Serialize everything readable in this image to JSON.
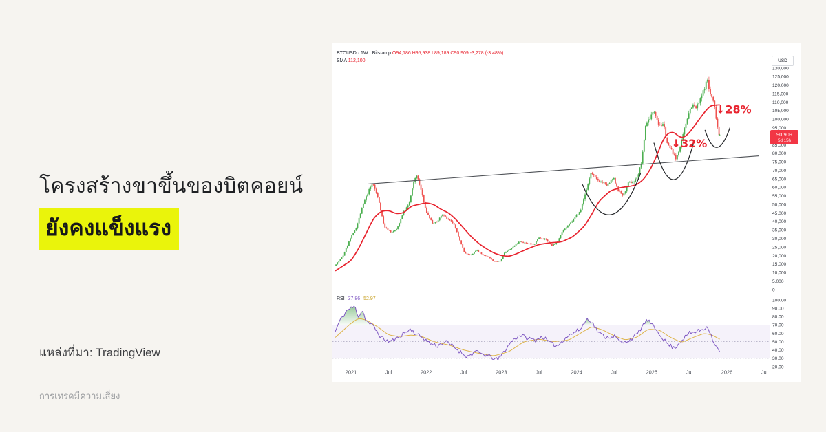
{
  "headline": {
    "line1": "โครงสร้างขาขึ้นของบิตคอยน์",
    "line2": "ยังคงแข็งแรง",
    "highlight_color": "#eaf40b"
  },
  "source": {
    "label": "แหล่งที่มา: TradingView"
  },
  "disclaimer": {
    "label": "การเทรดมีความเสี่ยง"
  },
  "chart": {
    "header": {
      "title": "BTCUSD · 1W · Bitstamp",
      "ohlc_text": "O94,186 H95,938 L89,189 C90,909 -3,278 (-3.48%)",
      "sma_label": "SMA",
      "sma_value": "112,100"
    },
    "rsi_header": {
      "label": "RSI",
      "value1": "37.86",
      "value2": "52.97"
    },
    "axis_currency": "USD",
    "price_label": {
      "value": "90,909",
      "countdown": "5d 15h",
      "bg": "#f23645"
    }
  },
  "chart_data": {
    "type": "candlestick",
    "symbol": "BTCUSD",
    "timeframe": "1W",
    "exchange": "Bitstamp",
    "last_close": 90909,
    "colors": {
      "up": "#4caf50",
      "down": "#ef5350",
      "sma": "#e8232e",
      "accent": "#e8232e",
      "rsi": "#7e57c2",
      "rsi_ma": "#ddb347",
      "band": "#7e57c2",
      "overbought_fill": "#43a047",
      "trendline": "#4f5257",
      "arc": "#26282b"
    },
    "price_axis": {
      "min": 0,
      "max": 130000,
      "step": 5000,
      "unit": "USD"
    },
    "rsi_axis": {
      "min": 20,
      "max": 100,
      "step": 10,
      "band": [
        30,
        70
      ],
      "mid": 50
    },
    "time_ticks": [
      {
        "label": "2021",
        "t": 2021
      },
      {
        "label": "Jul",
        "t": 2021.5
      },
      {
        "label": "2022",
        "t": 2022
      },
      {
        "label": "Jul",
        "t": 2022.5
      },
      {
        "label": "2023",
        "t": 2023
      },
      {
        "label": "Jul",
        "t": 2023.5
      },
      {
        "label": "2024",
        "t": 2024
      },
      {
        "label": "Jul",
        "t": 2024.5
      },
      {
        "label": "2025",
        "t": 2025
      },
      {
        "label": "Jul",
        "t": 2025.5
      },
      {
        "label": "2026",
        "t": 2026
      },
      {
        "label": "Jul",
        "t": 2026.5
      }
    ],
    "price_path": [
      [
        2020.79,
        14000
      ],
      [
        2020.9,
        19500
      ],
      [
        2021.0,
        30000
      ],
      [
        2021.08,
        36500
      ],
      [
        2021.17,
        50000
      ],
      [
        2021.25,
        58500
      ],
      [
        2021.3,
        62500
      ],
      [
        2021.38,
        52000
      ],
      [
        2021.45,
        37000
      ],
      [
        2021.55,
        33500
      ],
      [
        2021.62,
        35500
      ],
      [
        2021.7,
        45000
      ],
      [
        2021.78,
        50000
      ],
      [
        2021.85,
        64000
      ],
      [
        2021.88,
        67500
      ],
      [
        2021.95,
        57000
      ],
      [
        2022.0,
        47000
      ],
      [
        2022.05,
        42500
      ],
      [
        2022.1,
        38500
      ],
      [
        2022.17,
        40500
      ],
      [
        2022.22,
        44500
      ],
      [
        2022.3,
        41000
      ],
      [
        2022.37,
        39000
      ],
      [
        2022.45,
        30000
      ],
      [
        2022.52,
        21500
      ],
      [
        2022.6,
        20000
      ],
      [
        2022.68,
        23500
      ],
      [
        2022.75,
        20500
      ],
      [
        2022.85,
        19000
      ],
      [
        2022.9,
        16500
      ],
      [
        2023.0,
        16800
      ],
      [
        2023.05,
        21500
      ],
      [
        2023.15,
        24500
      ],
      [
        2023.25,
        28500
      ],
      [
        2023.35,
        27000
      ],
      [
        2023.45,
        26500
      ],
      [
        2023.5,
        30500
      ],
      [
        2023.6,
        29500
      ],
      [
        2023.68,
        26000
      ],
      [
        2023.75,
        27500
      ],
      [
        2023.82,
        34500
      ],
      [
        2023.9,
        37500
      ],
      [
        2024.0,
        43000
      ],
      [
        2024.07,
        47500
      ],
      [
        2024.15,
        60000
      ],
      [
        2024.2,
        68500
      ],
      [
        2024.28,
        64500
      ],
      [
        2024.35,
        63000
      ],
      [
        2024.42,
        61000
      ],
      [
        2024.5,
        65500
      ],
      [
        2024.57,
        58000
      ],
      [
        2024.63,
        55000
      ],
      [
        2024.7,
        62500
      ],
      [
        2024.78,
        63500
      ],
      [
        2024.83,
        67500
      ],
      [
        2024.88,
        76000
      ],
      [
        2024.93,
        97000
      ],
      [
        2025.0,
        102000
      ],
      [
        2025.05,
        105000
      ],
      [
        2025.1,
        97500
      ],
      [
        2025.17,
        96000
      ],
      [
        2025.22,
        85000
      ],
      [
        2025.28,
        81500
      ],
      [
        2025.33,
        76500
      ],
      [
        2025.4,
        85500
      ],
      [
        2025.45,
        95000
      ],
      [
        2025.5,
        104000
      ],
      [
        2025.55,
        108500
      ],
      [
        2025.6,
        106500
      ],
      [
        2025.65,
        110500
      ],
      [
        2025.7,
        117000
      ],
      [
        2025.75,
        123500
      ],
      [
        2025.78,
        115500
      ],
      [
        2025.82,
        112000
      ],
      [
        2025.85,
        106000
      ],
      [
        2025.88,
        97500
      ],
      [
        2025.905,
        90909
      ]
    ],
    "sma_path": [
      [
        2020.79,
        11000
      ],
      [
        2021.0,
        17000
      ],
      [
        2021.1,
        24000
      ],
      [
        2021.2,
        33000
      ],
      [
        2021.3,
        42000
      ],
      [
        2021.4,
        46000
      ],
      [
        2021.5,
        46500
      ],
      [
        2021.6,
        44500
      ],
      [
        2021.7,
        45000
      ],
      [
        2021.8,
        49000
      ],
      [
        2021.9,
        50000
      ],
      [
        2022.0,
        51000
      ],
      [
        2022.1,
        50000
      ],
      [
        2022.2,
        47000
      ],
      [
        2022.3,
        45000
      ],
      [
        2022.4,
        41000
      ],
      [
        2022.5,
        36000
      ],
      [
        2022.6,
        31000
      ],
      [
        2022.7,
        27000
      ],
      [
        2022.8,
        24000
      ],
      [
        2022.9,
        21500
      ],
      [
        2023.0,
        20000
      ],
      [
        2023.1,
        19500
      ],
      [
        2023.2,
        21000
      ],
      [
        2023.35,
        24000
      ],
      [
        2023.5,
        26500
      ],
      [
        2023.65,
        27500
      ],
      [
        2023.8,
        28000
      ],
      [
        2023.95,
        31000
      ],
      [
        2024.1,
        37000
      ],
      [
        2024.2,
        44000
      ],
      [
        2024.3,
        52000
      ],
      [
        2024.45,
        58000
      ],
      [
        2024.6,
        60000
      ],
      [
        2024.7,
        60500
      ],
      [
        2024.8,
        61500
      ],
      [
        2024.9,
        65000
      ],
      [
        2025.0,
        72000
      ],
      [
        2025.08,
        80000
      ],
      [
        2025.15,
        88000
      ],
      [
        2025.22,
        92000
      ],
      [
        2025.3,
        92500
      ],
      [
        2025.35,
        90000
      ],
      [
        2025.42,
        89000
      ],
      [
        2025.5,
        92000
      ],
      [
        2025.6,
        98000
      ],
      [
        2025.7,
        104000
      ],
      [
        2025.78,
        108000
      ],
      [
        2025.9,
        108500
      ]
    ],
    "rsi_path": [
      [
        2020.79,
        62
      ],
      [
        2020.85,
        75
      ],
      [
        2020.95,
        88
      ],
      [
        2021.05,
        92
      ],
      [
        2021.1,
        80
      ],
      [
        2021.15,
        88
      ],
      [
        2021.2,
        75
      ],
      [
        2021.3,
        68
      ],
      [
        2021.4,
        55
      ],
      [
        2021.5,
        50
      ],
      [
        2021.6,
        53
      ],
      [
        2021.7,
        60
      ],
      [
        2021.8,
        65
      ],
      [
        2021.85,
        60
      ],
      [
        2021.95,
        55
      ],
      [
        2022.05,
        48
      ],
      [
        2022.15,
        45
      ],
      [
        2022.25,
        50
      ],
      [
        2022.35,
        45
      ],
      [
        2022.45,
        38
      ],
      [
        2022.55,
        32
      ],
      [
        2022.65,
        38
      ],
      [
        2022.75,
        35
      ],
      [
        2022.85,
        32
      ],
      [
        2022.95,
        28
      ],
      [
        2023.05,
        40
      ],
      [
        2023.15,
        52
      ],
      [
        2023.25,
        58
      ],
      [
        2023.35,
        54
      ],
      [
        2023.45,
        52
      ],
      [
        2023.55,
        56
      ],
      [
        2023.65,
        48
      ],
      [
        2023.75,
        45
      ],
      [
        2023.85,
        55
      ],
      [
        2023.95,
        60
      ],
      [
        2024.05,
        65
      ],
      [
        2024.1,
        72
      ],
      [
        2024.15,
        78
      ],
      [
        2024.2,
        74
      ],
      [
        2024.3,
        60
      ],
      [
        2024.4,
        55
      ],
      [
        2024.5,
        57
      ],
      [
        2024.6,
        48
      ],
      [
        2024.7,
        52
      ],
      [
        2024.8,
        58
      ],
      [
        2024.9,
        72
      ],
      [
        2024.95,
        76
      ],
      [
        2025.0,
        70
      ],
      [
        2025.05,
        65
      ],
      [
        2025.1,
        60
      ],
      [
        2025.2,
        48
      ],
      [
        2025.3,
        42
      ],
      [
        2025.4,
        52
      ],
      [
        2025.5,
        60
      ],
      [
        2025.6,
        62
      ],
      [
        2025.7,
        66
      ],
      [
        2025.75,
        68
      ],
      [
        2025.8,
        55
      ],
      [
        2025.85,
        45
      ],
      [
        2025.905,
        37.86
      ]
    ],
    "rsi_ma_path": [
      [
        2020.79,
        55
      ],
      [
        2021.0,
        72
      ],
      [
        2021.1,
        78
      ],
      [
        2021.2,
        76
      ],
      [
        2021.35,
        68
      ],
      [
        2021.5,
        58
      ],
      [
        2021.65,
        56
      ],
      [
        2021.8,
        58
      ],
      [
        2021.95,
        56
      ],
      [
        2022.1,
        50
      ],
      [
        2022.3,
        46
      ],
      [
        2022.5,
        40
      ],
      [
        2022.7,
        36
      ],
      [
        2022.9,
        33
      ],
      [
        2023.1,
        38
      ],
      [
        2023.3,
        50
      ],
      [
        2023.5,
        53
      ],
      [
        2023.7,
        50
      ],
      [
        2023.9,
        52
      ],
      [
        2024.05,
        60
      ],
      [
        2024.2,
        68
      ],
      [
        2024.35,
        64
      ],
      [
        2024.5,
        57
      ],
      [
        2024.65,
        52
      ],
      [
        2024.8,
        55
      ],
      [
        2024.95,
        65
      ],
      [
        2025.1,
        64
      ],
      [
        2025.25,
        55
      ],
      [
        2025.4,
        49
      ],
      [
        2025.55,
        55
      ],
      [
        2025.7,
        60
      ],
      [
        2025.8,
        58
      ],
      [
        2025.905,
        52.97
      ]
    ],
    "trendline": {
      "from": [
        2021.23,
        62000
      ],
      "to": [
        2026.43,
        78500
      ]
    },
    "arcs": [
      {
        "from": [
          2024.08,
          61500
        ],
        "bottom": [
          2024.46,
          44000
        ],
        "to": [
          2024.85,
          68000
        ]
      },
      {
        "from": [
          2025.03,
          86000
        ],
        "bottom": [
          2025.29,
          64500
        ],
        "to": [
          2025.56,
          86500
        ]
      },
      {
        "from": [
          2025.71,
          93500
        ],
        "bottom": [
          2025.87,
          83500
        ],
        "to": [
          2026.04,
          95000
        ]
      }
    ],
    "annotations": [
      {
        "text": "↓32%",
        "t": 2025.5,
        "price": 85500
      },
      {
        "text": "↓28%",
        "t": 2026.09,
        "price": 105500
      }
    ]
  }
}
